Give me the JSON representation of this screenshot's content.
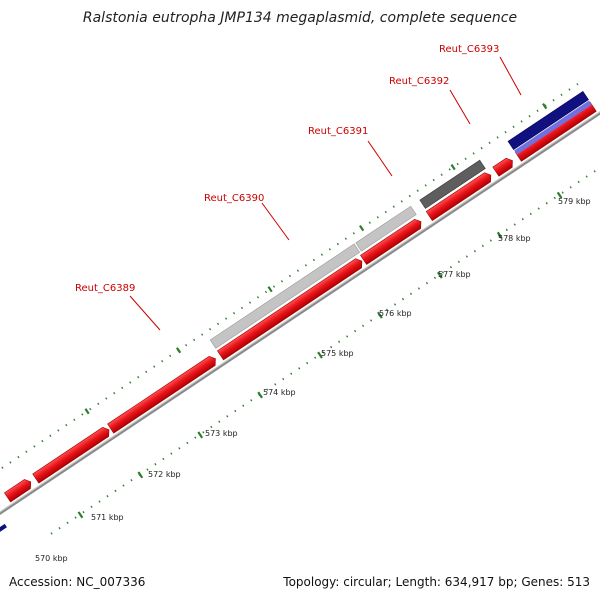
{
  "title": "Ralstonia eutropha JMP134 megaplasmid, complete sequence",
  "footer": {
    "accession": "Accession: NC_007336",
    "summary": "Topology: circular; Length: 634,917 bp; Genes: 513"
  },
  "gene_labels": [
    {
      "id": "reut_c6389",
      "name": "Reut_C6389"
    },
    {
      "id": "reut_c6390",
      "name": "Reut_C6390"
    },
    {
      "id": "reut_c6391",
      "name": "Reut_C6391"
    },
    {
      "id": "reut_c6392",
      "name": "Reut_C6392"
    },
    {
      "id": "reut_c6393",
      "name": "Reut_C6393"
    }
  ],
  "kbp_ticks": [
    "570 kbp",
    "571 kbp",
    "572 kbp",
    "573 kbp",
    "574 kbp",
    "575 kbp",
    "576 kbp",
    "577 kbp",
    "578 kbp",
    "579 kbp"
  ],
  "colors": {
    "cds": "#e8141b",
    "cds_dark": "#a00000",
    "feature_light_gray": "#c4c4c4",
    "feature_dark_gray": "#5e5e5e",
    "feature_blue": "#101080",
    "feature_light_blue": "#7070e0",
    "backbone": "#8a8a8a",
    "tick_green": "#2e7d2e",
    "label_red": "#cc0000"
  }
}
